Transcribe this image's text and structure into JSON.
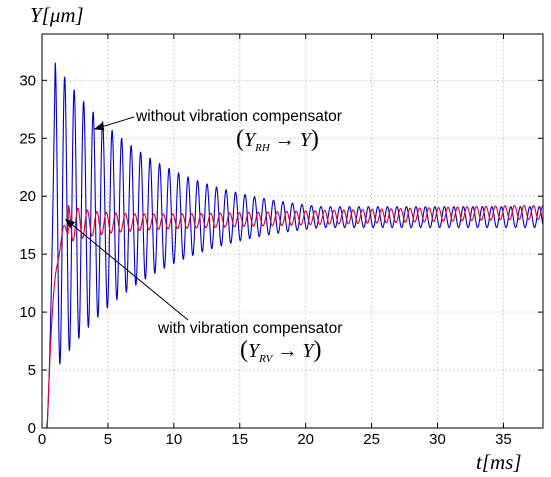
{
  "chart_data": {
    "type": "line",
    "ylabel": "Y[μm]",
    "xlabel": "t[ms]",
    "xlim": [
      0,
      38
    ],
    "ylim": [
      0,
      34
    ],
    "xticks": [
      0,
      5,
      10,
      15,
      20,
      25,
      30,
      35
    ],
    "yticks": [
      0,
      5,
      10,
      15,
      20,
      25,
      30
    ],
    "grid": true,
    "annotations": [
      {
        "text": "without vibration compensator",
        "formula": "(Y_RH → Y)",
        "target": [
          4.0,
          25.8
        ]
      },
      {
        "text": "with vibration compensator",
        "formula": "(Y_RV → Y)",
        "target": [
          1.8,
          18.0
        ]
      }
    ],
    "series": [
      {
        "color": "#0000cc",
        "model": "decaying-oscillation",
        "rise_end_ms": 1.0,
        "peak": 31.5,
        "first_min": 3.6,
        "steady": 18.2,
        "period_ms": 0.72,
        "envelope_decay_ms": 7.5,
        "amplitude_floor": 0.9,
        "x_end": 38
      },
      {
        "color": "#dd0033",
        "model": "damped-rise",
        "rise_end_ms": 2.0,
        "steady": 17.6,
        "drift_to": 18.6,
        "ripple_amplitude": 0.6,
        "period_ms": 0.72,
        "x_end": 38
      }
    ]
  }
}
